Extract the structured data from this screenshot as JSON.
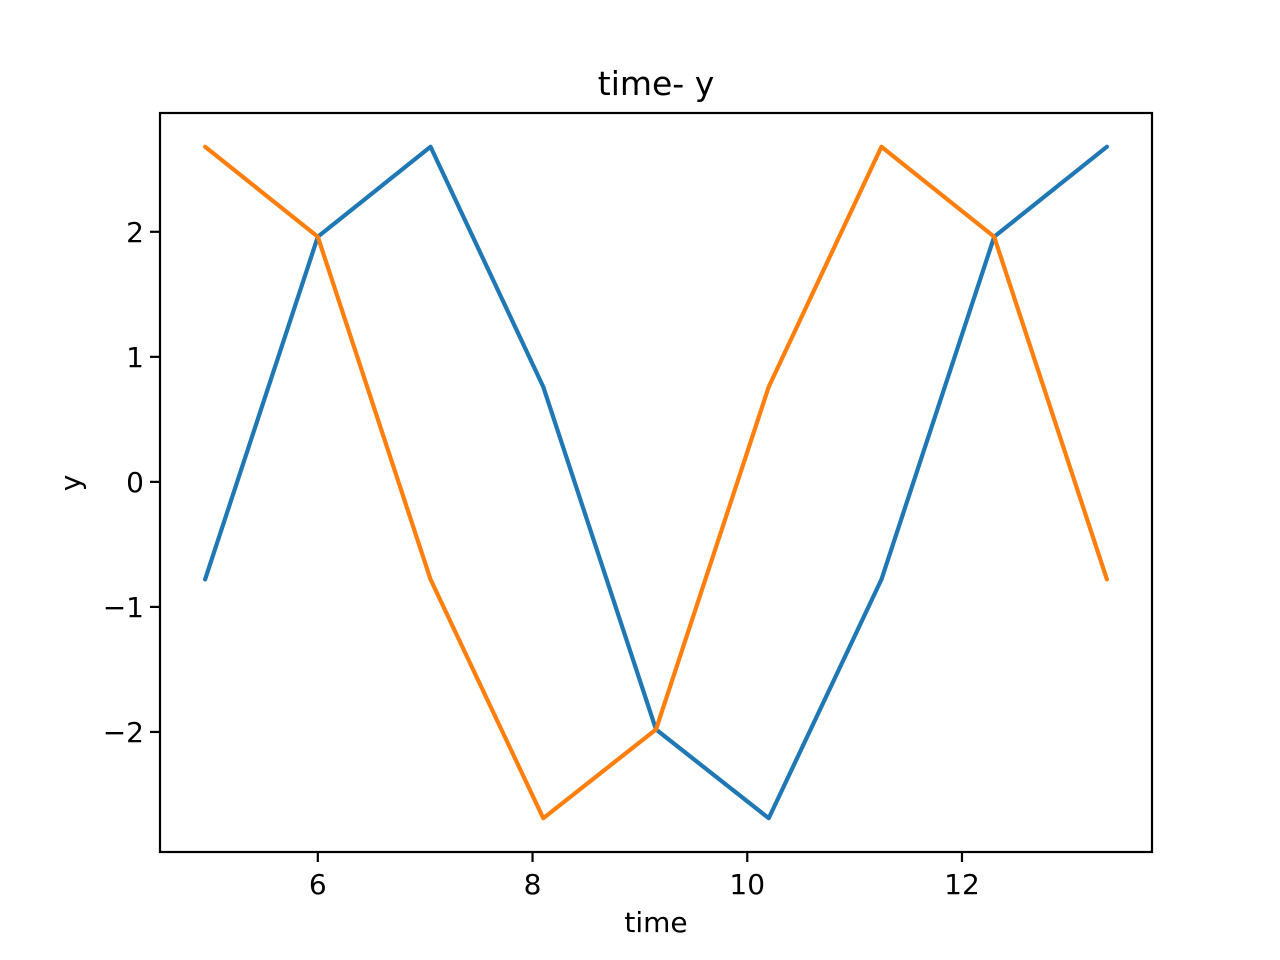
{
  "figure": {
    "background": "#ffffff",
    "frame_color": "#000000"
  },
  "chart_data": {
    "type": "line",
    "title": "time- y",
    "xlabel": "time",
    "ylabel": "y",
    "grid": false,
    "legend": "none",
    "x": [
      4.95,
      6.0,
      7.05,
      8.1,
      9.15,
      10.2,
      11.25,
      12.3,
      13.35
    ],
    "series": [
      {
        "name": "blue",
        "color": "#1f77b4",
        "values": [
          -0.78,
          1.96,
          2.68,
          0.76,
          -1.98,
          -2.69,
          -0.78,
          1.96,
          2.68
        ]
      },
      {
        "name": "orange",
        "color": "#ff7f0e",
        "values": [
          2.68,
          1.96,
          -0.78,
          -2.69,
          -1.98,
          0.76,
          2.68,
          1.96,
          -0.78
        ]
      }
    ],
    "xlim": [
      4.53,
      13.77
    ],
    "ylim": [
      -2.96,
      2.95
    ],
    "xticks": {
      "values": [
        6,
        8,
        10,
        12
      ],
      "labels": [
        "6",
        "8",
        "10",
        "12"
      ]
    },
    "yticks": {
      "values": [
        2,
        1,
        0,
        -1,
        -2
      ],
      "labels": [
        "2",
        "1",
        "0",
        "−1",
        "−2"
      ]
    }
  }
}
